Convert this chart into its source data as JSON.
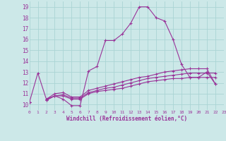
{
  "xlabel": "Windchill (Refroidissement éolien,°C)",
  "background_color": "#cce8e8",
  "grid_color": "#aad4d4",
  "line_color": "#993399",
  "xlim": [
    0,
    23
  ],
  "ylim": [
    9.5,
    19.5
  ],
  "xticks": [
    0,
    1,
    2,
    3,
    4,
    5,
    6,
    7,
    8,
    9,
    10,
    11,
    12,
    13,
    14,
    15,
    16,
    17,
    18,
    19,
    20,
    21,
    22,
    23
  ],
  "yticks": [
    10,
    11,
    12,
    13,
    14,
    15,
    16,
    17,
    18,
    19
  ],
  "series": [
    [
      10.2,
      12.9,
      10.5,
      10.8,
      10.5,
      9.9,
      9.9,
      13.1,
      13.5,
      15.9,
      15.9,
      16.5,
      17.5,
      19.0,
      19.0,
      18.0,
      17.7,
      16.0,
      13.7,
      12.5,
      12.5,
      13.0,
      11.9,
      null
    ],
    [
      10.2,
      null,
      10.4,
      10.8,
      10.8,
      10.5,
      10.5,
      11.0,
      11.2,
      11.3,
      11.4,
      11.5,
      11.7,
      11.9,
      12.1,
      12.2,
      12.3,
      12.4,
      12.4,
      12.5,
      12.5,
      12.5,
      12.5,
      null
    ],
    [
      10.2,
      null,
      10.4,
      10.8,
      10.9,
      10.6,
      10.6,
      11.1,
      11.3,
      11.5,
      11.6,
      11.8,
      12.0,
      12.2,
      12.4,
      12.5,
      12.6,
      12.7,
      12.8,
      12.9,
      12.9,
      12.9,
      12.9,
      null
    ],
    [
      10.2,
      null,
      10.5,
      11.0,
      11.1,
      10.7,
      10.7,
      11.3,
      11.5,
      11.7,
      11.9,
      12.1,
      12.3,
      12.5,
      12.6,
      12.8,
      13.0,
      13.1,
      13.2,
      13.3,
      13.3,
      13.3,
      11.9,
      null
    ]
  ]
}
